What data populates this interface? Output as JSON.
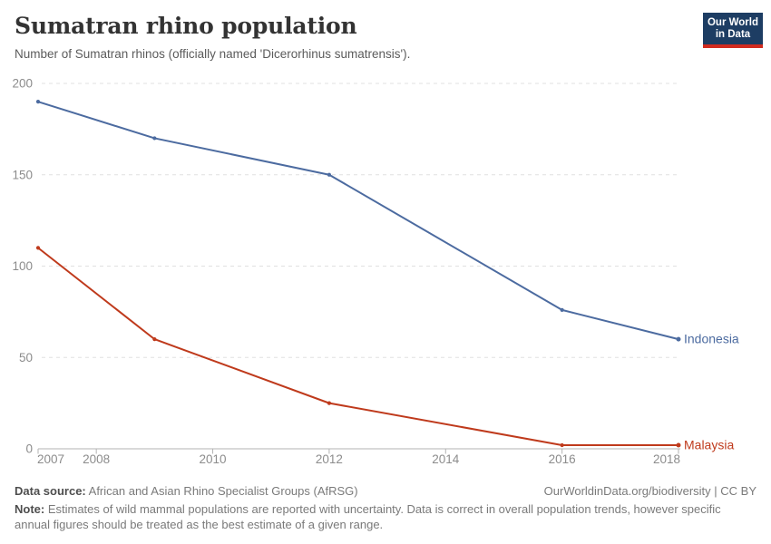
{
  "header": {
    "title": "Sumatran rhino population",
    "subtitle": "Number of Sumatran rhinos (officially named 'Dicerorhinus sumatrensis').",
    "logo": {
      "line1": "Our World",
      "line2": "in Data",
      "bg_color": "#1d3d63",
      "bar_color": "#d12b1f"
    }
  },
  "chart_data": {
    "type": "line",
    "title": "Sumatran rhino population",
    "x": [
      2007,
      2009,
      2012,
      2016,
      2018
    ],
    "series": [
      {
        "name": "Indonesia",
        "color": "#4c6ba0",
        "values": [
          190,
          170,
          150,
          76,
          60
        ]
      },
      {
        "name": "Malaysia",
        "color": "#bf3a1c",
        "values": [
          110,
          60,
          25,
          2,
          2
        ]
      }
    ],
    "xlabel": "",
    "ylabel": "",
    "xlim": [
      2007,
      2018
    ],
    "ylim": [
      0,
      200
    ],
    "yticks": [
      0,
      50,
      100,
      150,
      200
    ],
    "xticks": [
      2007,
      2008,
      2010,
      2012,
      2014,
      2016,
      2018
    ],
    "grid": "horizontal-dashed",
    "legend": "line-end-labels",
    "colors": {
      "grid": "#e0e0e0",
      "axis": "#b3b3b3",
      "tick_label": "#8c8c8c"
    }
  },
  "footer": {
    "datasource_label": "Data source:",
    "datasource_text": " African and Asian Rhino Specialist Groups (AfRSG)",
    "license_text": "OurWorldinData.org/biodiversity | CC BY",
    "note_label": "Note:",
    "note_text": " Estimates of wild mammal populations are reported with uncertainty. Data is correct in overall population trends, however specific annual figures should be treated as the best estimate of a given range."
  }
}
